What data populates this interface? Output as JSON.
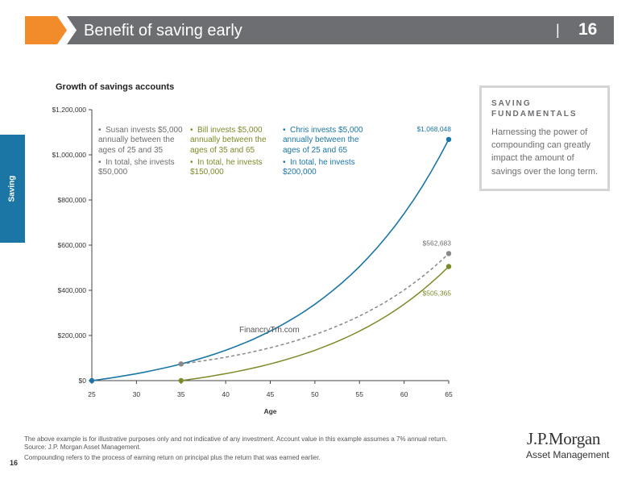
{
  "header": {
    "title": "Benefit of saving early",
    "separator": "|",
    "page_number": "16",
    "accent_color": "#f28c2a",
    "bar_color": "#6d6e71"
  },
  "side_tab": {
    "label": "Saving",
    "color": "#1b76a6"
  },
  "chart_data": {
    "type": "line",
    "title": "Growth of savings accounts",
    "xlabel": "Age",
    "ylabel": "",
    "xlim": [
      25,
      65
    ],
    "ylim": [
      0,
      1200000
    ],
    "x_ticks": [
      25,
      30,
      35,
      40,
      45,
      50,
      55,
      60,
      65
    ],
    "y_ticks": [
      0,
      200000,
      400000,
      600000,
      800000,
      1000000,
      1200000
    ],
    "y_tick_labels": [
      "$0",
      "$200,000",
      "$400,000",
      "$600,000",
      "$800,000",
      "$1,000,000",
      "$1,200,000"
    ],
    "grid": false,
    "annual_return": 0.07,
    "series": [
      {
        "name": "Chris",
        "color": "#1b76a6",
        "dashed": false,
        "start_age": 25,
        "stop_age": 65,
        "x": [
          25,
          65
        ],
        "y": [
          0,
          1068048
        ],
        "end_label": "$1,068,048"
      },
      {
        "name": "Susan",
        "color": "#888888",
        "dashed": true,
        "start_age": 25,
        "stop_age": 35,
        "x": [
          25,
          35,
          65
        ],
        "y": [
          0,
          73918,
          562683
        ],
        "end_label": "$562,683"
      },
      {
        "name": "Bill",
        "color": "#7a8c2a",
        "dashed": false,
        "start_age": 35,
        "stop_age": 65,
        "x": [
          35,
          65
        ],
        "y": [
          0,
          505365
        ],
        "end_label": "$505,365"
      }
    ]
  },
  "notes": {
    "susan": {
      "line1": "Susan invests $5,000 annually between the ages of 25 and 35",
      "line2": "In total, she invests $50,000"
    },
    "bill": {
      "line1": "Bill invests $5,000 annually between the ages of 35 and 65",
      "line2": "In total, he invests $150,000"
    },
    "chris": {
      "line1": "Chris invests $5,000 annually between the ages of 25 and 65",
      "line2": "In total, he invests $200,000"
    }
  },
  "sidebox": {
    "title": "SAVING FUNDAMENTALS",
    "text": "Harnessing the power of compounding can greatly impact the amount of savings over the long term."
  },
  "watermark": "FinancryTrh.com",
  "footnotes": {
    "line1": "The above example is for illustrative purposes only and not indicative of any investment. Account value in this example assumes a 7% annual return.",
    "line2": "Source: J.P. Morgan Asset Management.",
    "line3": "Compounding refers to the process of earning return on principal plus the return that was earned earlier."
  },
  "page_number": "16",
  "logo": {
    "main": "J.P.Morgan",
    "sub": "Asset Management"
  }
}
